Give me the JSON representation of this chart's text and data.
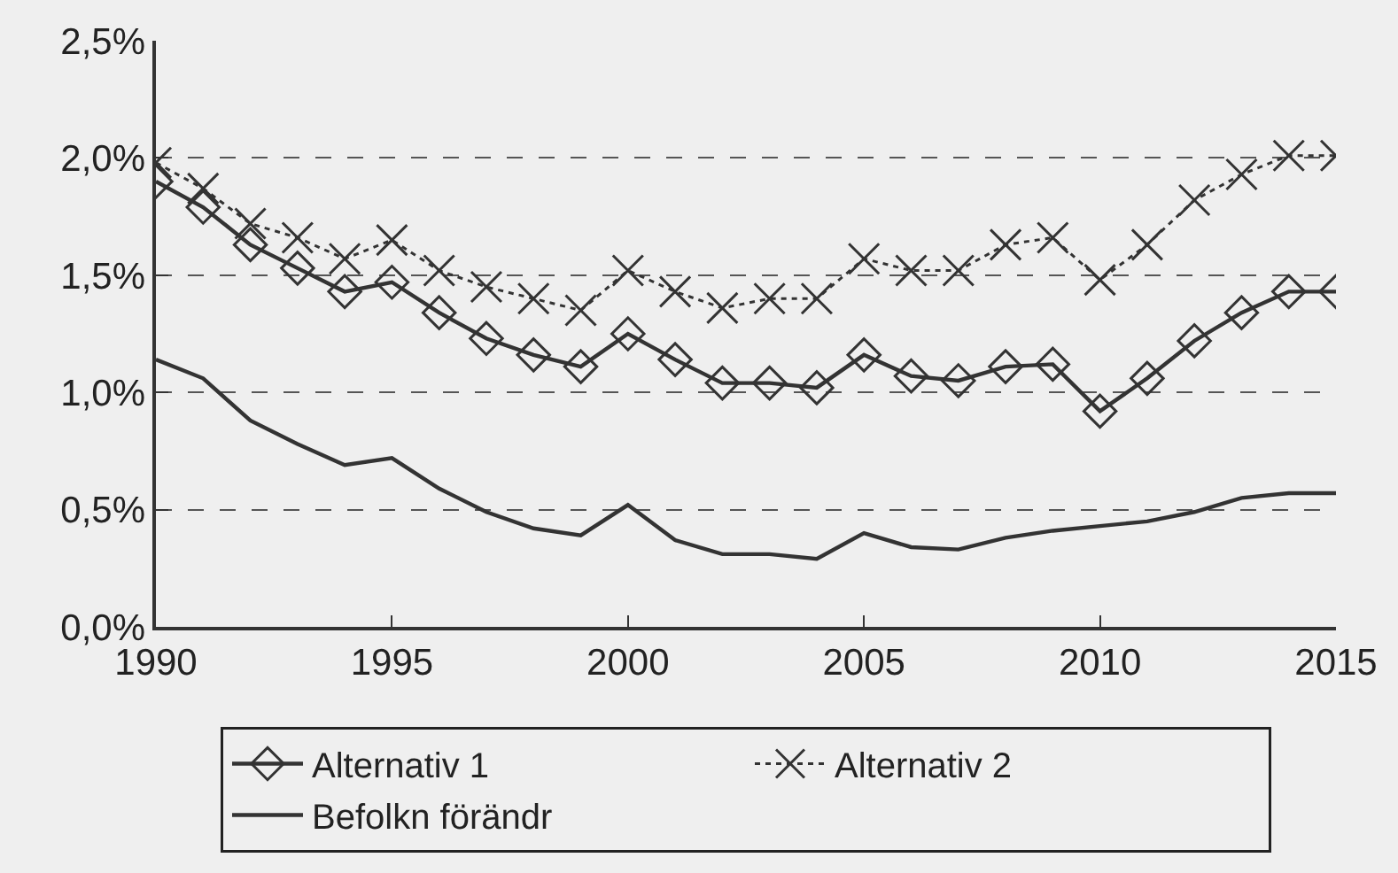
{
  "chart_data": {
    "type": "line",
    "x": [
      1990,
      1991,
      1992,
      1993,
      1994,
      1995,
      1996,
      1997,
      1998,
      1999,
      2000,
      2001,
      2002,
      2003,
      2004,
      2005,
      2006,
      2007,
      2008,
      2009,
      2010,
      2011,
      2012,
      2013,
      2014,
      2015
    ],
    "series": [
      {
        "name": "Alternativ 1",
        "color": "#333333",
        "marker": "diamond",
        "line_style": "solid",
        "values": [
          1.9,
          1.79,
          1.63,
          1.53,
          1.43,
          1.47,
          1.34,
          1.23,
          1.16,
          1.11,
          1.25,
          1.14,
          1.04,
          1.04,
          1.02,
          1.16,
          1.07,
          1.05,
          1.11,
          1.12,
          0.92,
          1.06,
          1.22,
          1.34,
          1.43,
          1.43
        ]
      },
      {
        "name": "Alternativ 2",
        "color": "#333333",
        "marker": "cross",
        "line_style": "dotted",
        "values": [
          1.98,
          1.87,
          1.72,
          1.66,
          1.57,
          1.65,
          1.52,
          1.45,
          1.4,
          1.35,
          1.52,
          1.43,
          1.36,
          1.4,
          1.4,
          1.57,
          1.52,
          1.52,
          1.63,
          1.66,
          1.48,
          1.63,
          1.82,
          1.93,
          2.01,
          2.01
        ]
      },
      {
        "name": "Befolkn förändr",
        "color": "#333333",
        "marker": "none",
        "line_style": "solid",
        "values": [
          1.14,
          1.06,
          0.88,
          0.78,
          0.69,
          0.72,
          0.59,
          0.49,
          0.42,
          0.39,
          0.52,
          0.37,
          0.31,
          0.31,
          0.29,
          0.4,
          0.34,
          0.33,
          0.38,
          0.41,
          0.43,
          0.45,
          0.49,
          0.55,
          0.57,
          0.57
        ]
      }
    ],
    "xlim": [
      1990,
      2015
    ],
    "xticks": [
      1990,
      1995,
      2000,
      2005,
      2010,
      2015
    ],
    "ylim": [
      0,
      2.5
    ],
    "yticks": [
      {
        "value": 0,
        "label": "0,0%"
      },
      {
        "value": 0.5,
        "label": "0,5%"
      },
      {
        "value": 1.0,
        "label": "1,0%"
      },
      {
        "value": 1.5,
        "label": "1,5%"
      },
      {
        "value": 2.0,
        "label": "2,0%"
      },
      {
        "value": 2.5,
        "label": "2,5%"
      }
    ],
    "grid": "y",
    "legend": "bottom"
  }
}
